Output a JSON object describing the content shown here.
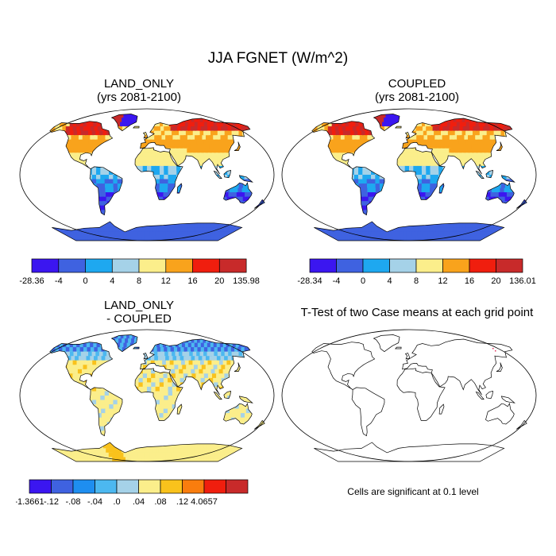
{
  "title": "JJA FGNET (W/m^2)",
  "panels": [
    {
      "id": "land_only",
      "title_lines": [
        "LAND_ONLY",
        "(yrs 2081-2100)"
      ]
    },
    {
      "id": "coupled",
      "title_lines": [
        "COUPLED",
        "(yrs 2081-2100)"
      ]
    },
    {
      "id": "difference",
      "title_lines": [
        "LAND_ONLY",
        "- COUPLED"
      ]
    },
    {
      "id": "ttest",
      "title_lines": [
        "T-Test of two Case means at each grid point"
      ],
      "note": "Cells are significant at 0.1 level"
    }
  ],
  "chart_data": [
    {
      "type": "heatmap",
      "title": "LAND_ONLY (yrs 2081-2100)",
      "colorbar": {
        "labels": [
          "-28.36",
          "-4",
          "0",
          "4",
          "8",
          "12",
          "16",
          "20",
          "135.98"
        ],
        "colors": [
          "#3b16f0",
          "#3f62e0",
          "#1ea8f0",
          "#a5d2e8",
          "#fbee8b",
          "#f9a31c",
          "#f01e0e",
          "#c82a2a"
        ]
      }
    },
    {
      "type": "heatmap",
      "title": "COUPLED (yrs 2081-2100)",
      "colorbar": {
        "labels": [
          "-28.34",
          "-4",
          "0",
          "4",
          "8",
          "12",
          "16",
          "20",
          "136.01"
        ],
        "colors": [
          "#3b16f0",
          "#3f62e0",
          "#1ea8f0",
          "#a5d2e8",
          "#fbee8b",
          "#f9a31c",
          "#f01e0e",
          "#c82a2a"
        ]
      }
    },
    {
      "type": "heatmap",
      "title": "LAND_ONLY - COUPLED",
      "colorbar": {
        "labels": [
          "-1.3661",
          "-.12",
          "-.08",
          "-.04",
          ".0",
          ".04",
          ".08",
          ".12",
          "4.0657"
        ],
        "colors": [
          "#3b16f0",
          "#3f62e0",
          "#1e8ef0",
          "#4cb8f0",
          "#a5d2e8",
          "#fbee8b",
          "#f9c21c",
          "#f97d0e",
          "#f01e0e",
          "#c82a2a"
        ]
      }
    },
    {
      "type": "heatmap",
      "title": "T-Test of two Case means at each grid point",
      "significance_level": 0.1
    }
  ]
}
